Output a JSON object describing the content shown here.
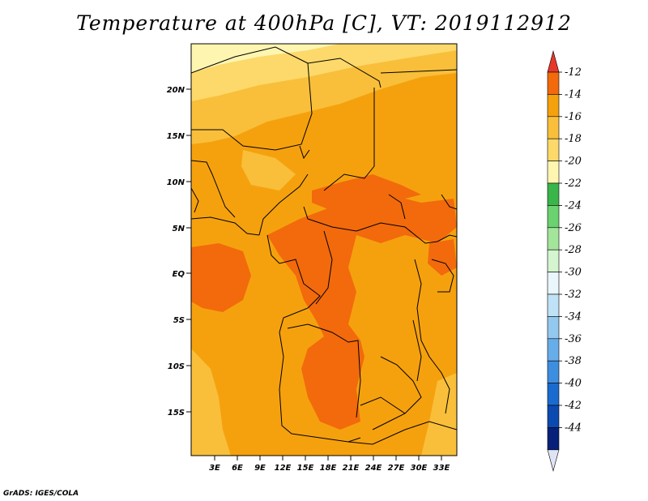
{
  "title": "Temperature at 400hPa [C], VT: 2019112912",
  "credit": "GrADS: IGES/COLA",
  "lat_labels": [
    "20N",
    "15N",
    "10N",
    "5N",
    "EQ",
    "5S",
    "10S",
    "15S"
  ],
  "lon_labels": [
    "3E",
    "6E",
    "9E",
    "12E",
    "15E",
    "18E",
    "21E",
    "24E",
    "27E",
    "30E",
    "33E"
  ],
  "colorbar": {
    "labels": [
      "-12",
      "-14",
      "-16",
      "-18",
      "-20",
      "-22",
      "-24",
      "-26",
      "-28",
      "-30",
      "-32",
      "-34",
      "-36",
      "-38",
      "-40",
      "-42",
      "-44"
    ],
    "colors": [
      "#e8382a",
      "#f26a0c",
      "#f5a10e",
      "#f9bf3a",
      "#fcd96a",
      "#fef5b0",
      "#39b54a",
      "#6ad26e",
      "#a3e59a",
      "#d5f4d0",
      "#e9f6fb",
      "#bfe2f6",
      "#93c9ef",
      "#67adea",
      "#3e8ee0",
      "#1a6bd0",
      "#0b4ab0",
      "#07217a",
      "#dfe4f5"
    ]
  }
}
